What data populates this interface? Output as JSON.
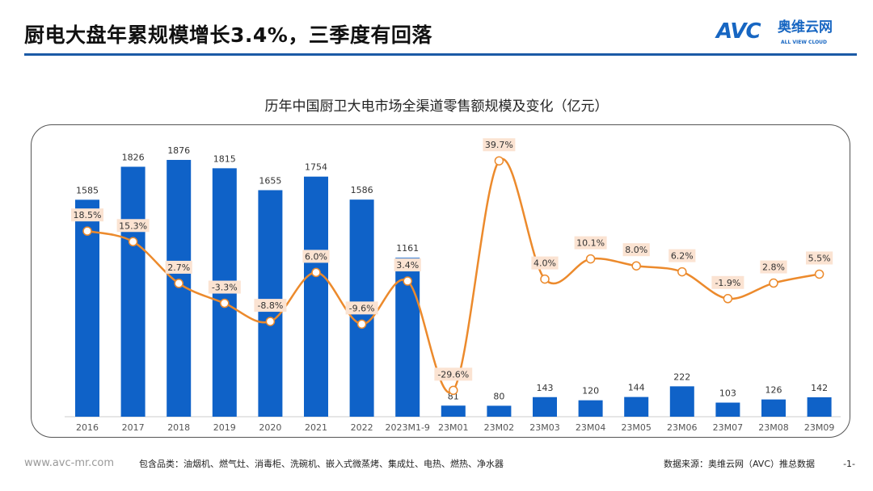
{
  "header": {
    "title": "厨电大盘年累规模增长3.4%，三季度有回落",
    "logo_text": "AVC",
    "logo_cn": "奥维云网",
    "logo_en": "ALL VIEW CLOUD"
  },
  "footer": {
    "url": "www.avc-mr.com",
    "categories": "包含品类：油烟机、燃气灶、消毒柜、洗碗机、嵌入式微蒸烤、集成灶、电热、燃热、净水器",
    "source": "数据来源：奥维云网（AVC）推总数据",
    "page": "-1-"
  },
  "colors": {
    "bar": "#0f62c8",
    "line": "#ec8a2c",
    "label_bg": "#fbe3d2",
    "accent": "#1b5aa6"
  },
  "chart_data": {
    "type": "bar+line",
    "title": "历年中国厨卫大电市场全渠道零售额规模及变化（亿元）",
    "categories": [
      "2016",
      "2017",
      "2018",
      "2019",
      "2020",
      "2021",
      "2022",
      "2023M1-9",
      "23M01",
      "23M02",
      "23M03",
      "23M04",
      "23M05",
      "23M06",
      "23M07",
      "23M08",
      "23M09"
    ],
    "series": [
      {
        "type": "bar",
        "values": [
          1585,
          1826,
          1876,
          1815,
          1655,
          1754,
          1586,
          1161,
          81,
          80,
          143,
          120,
          144,
          222,
          103,
          126,
          142
        ]
      },
      {
        "type": "line",
        "values": [
          18.5,
          15.3,
          2.7,
          -3.3,
          -8.8,
          6.0,
          -9.6,
          3.4,
          -29.6,
          39.7,
          4.0,
          10.1,
          8.0,
          6.2,
          -1.9,
          2.8,
          5.5
        ]
      }
    ],
    "line_labels": [
      "18.5%",
      "15.3%",
      "2.7%",
      "-3.3%",
      "-8.8%",
      "6.0%",
      "-9.6%",
      "3.4%",
      "-29.6%",
      "39.7%",
      "4.0%",
      "10.1%",
      "8.0%",
      "6.2%",
      "-1.9%",
      "2.8%",
      "5.5%"
    ],
    "grid": false,
    "legend": "none"
  }
}
